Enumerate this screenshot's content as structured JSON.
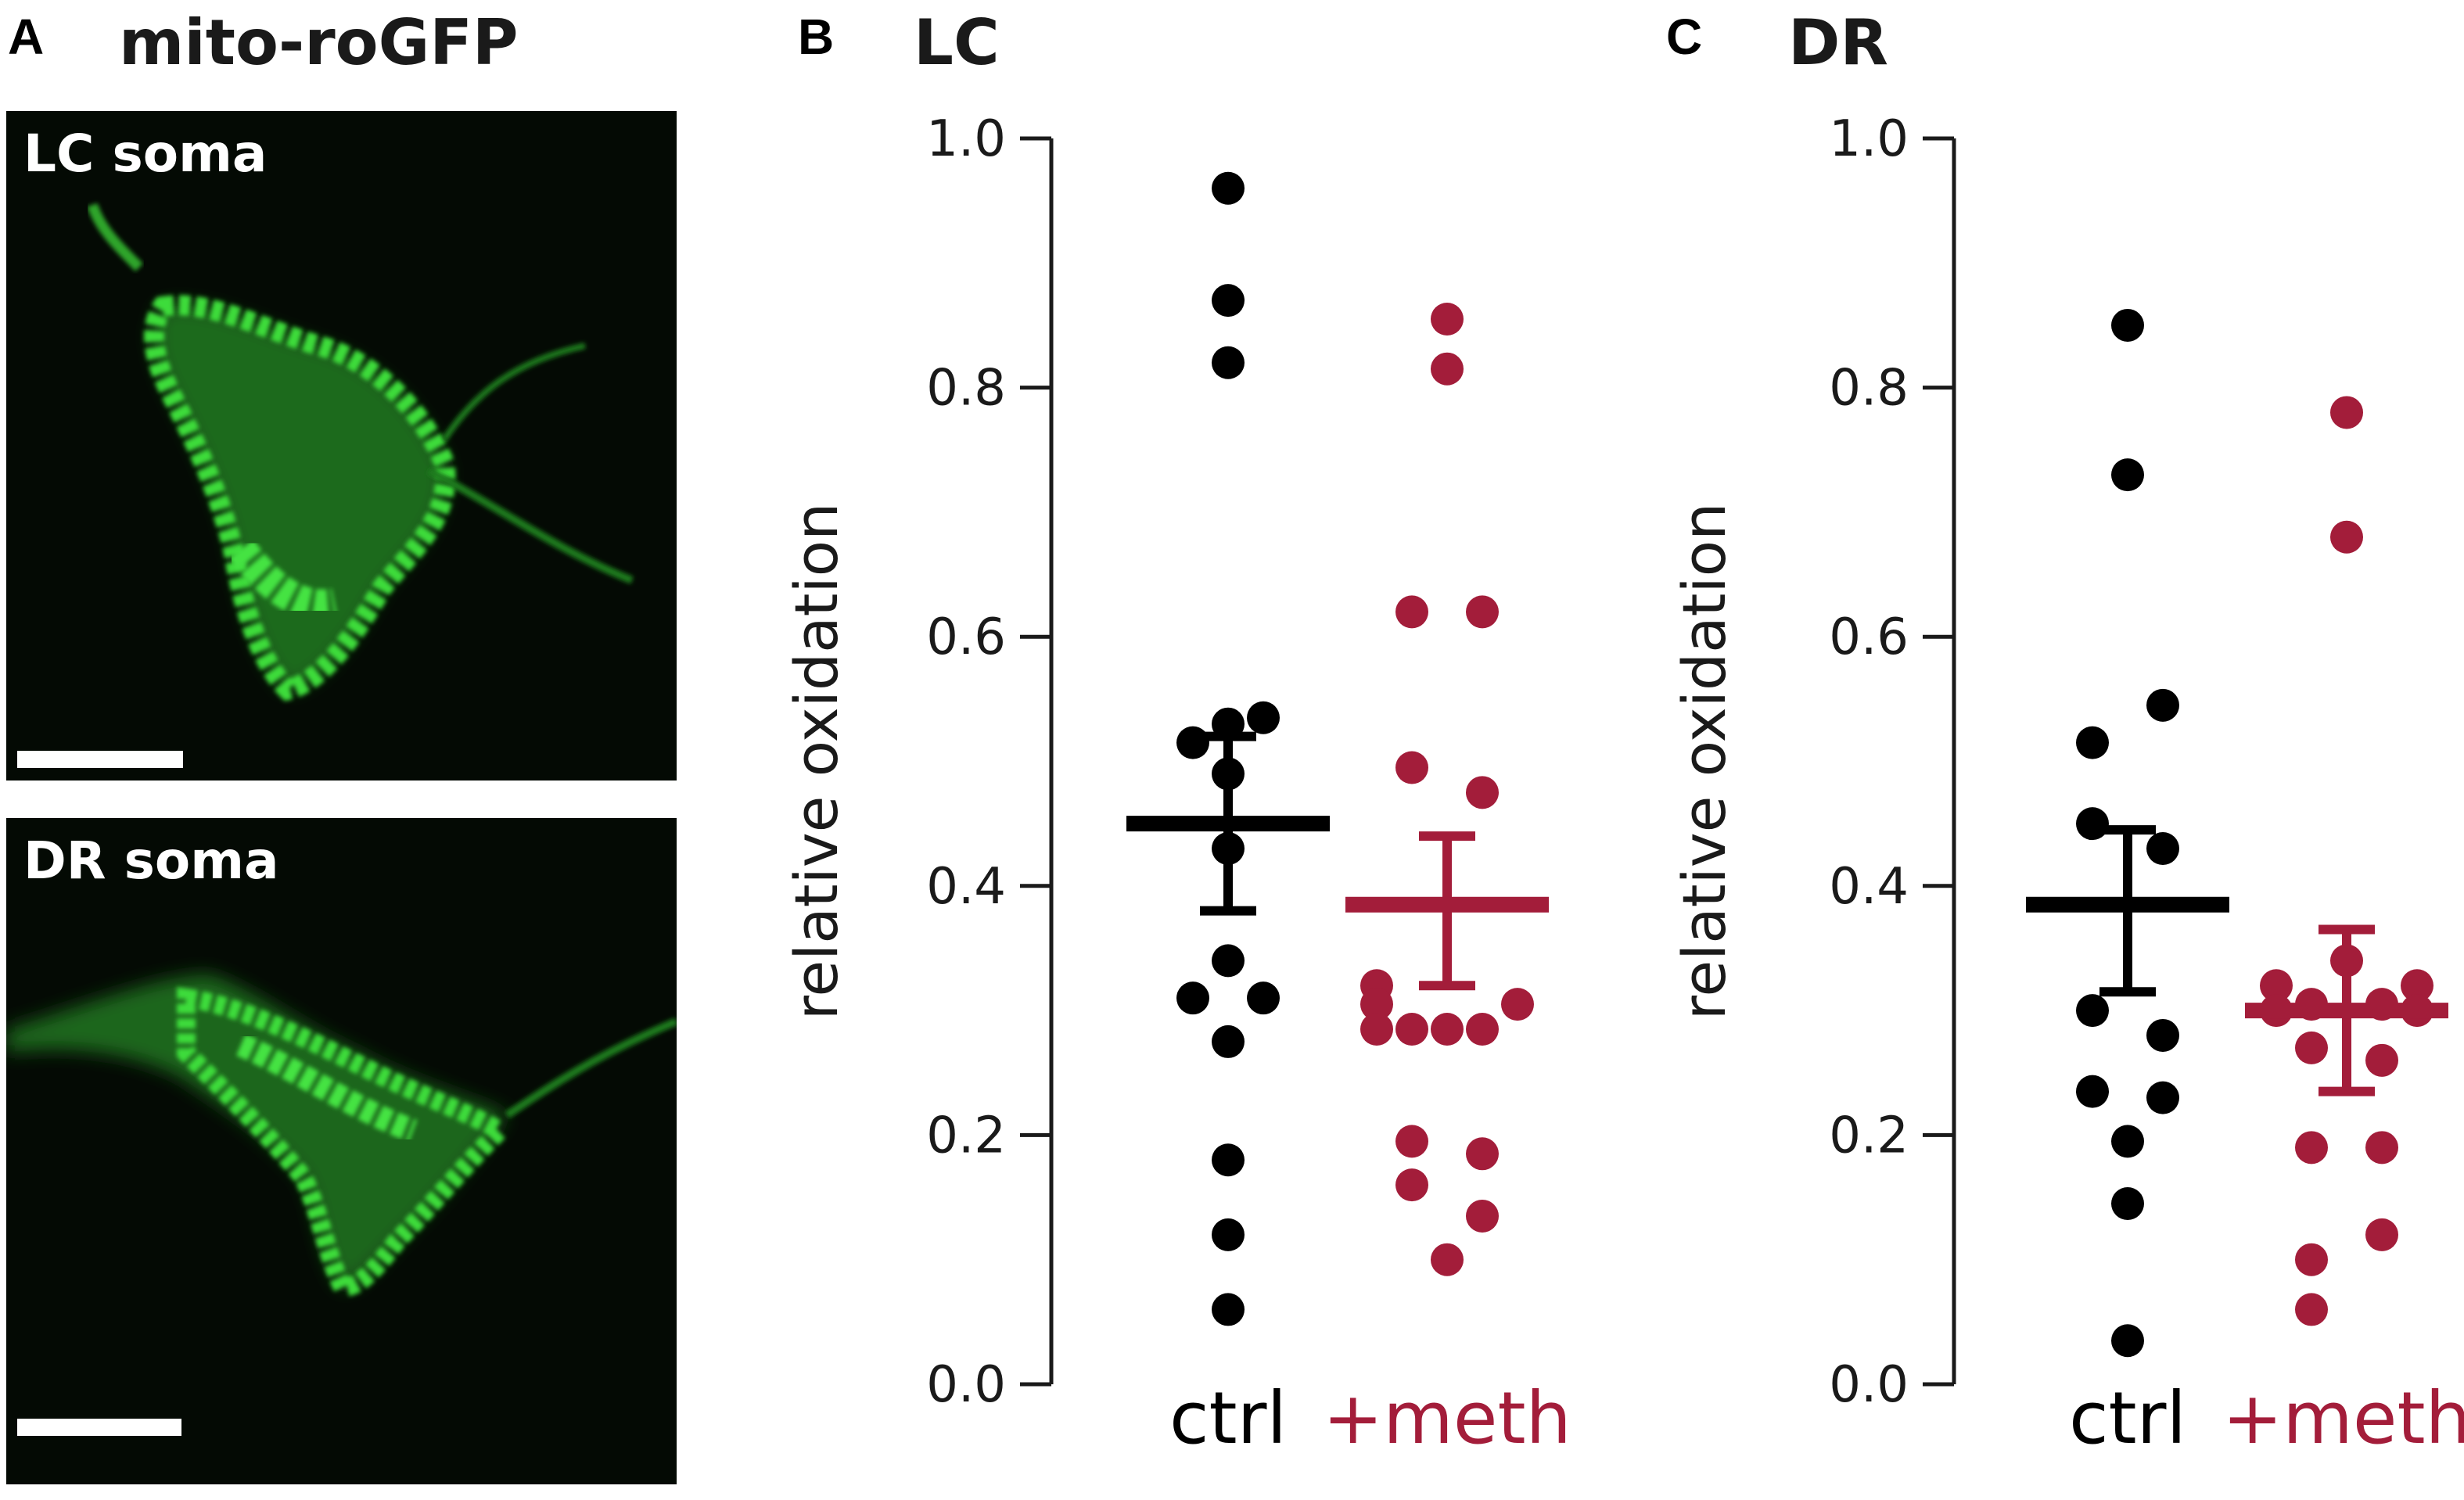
{
  "panels": {
    "a": {
      "letter": "A",
      "title": "mito-roGFP",
      "images": [
        {
          "label": "LC soma"
        },
        {
          "label": "DR soma"
        }
      ]
    },
    "b": {
      "letter": "B",
      "title": "LC"
    },
    "c": {
      "letter": "C",
      "title": "DR"
    }
  },
  "colors": {
    "ctrl": "#000000",
    "meth": "#a31d3a",
    "fluorescence": "#3ddc3a",
    "background": "#040a04"
  },
  "chart_data": [
    {
      "type": "scatter",
      "title": "LC",
      "ylabel": "relative oxidation",
      "ylim": [
        0.0,
        1.0
      ],
      "yticks": [
        "0.0",
        "0.2",
        "0.4",
        "0.6",
        "0.8",
        "1.0"
      ],
      "categories": [
        "ctrl",
        "+meth"
      ],
      "grid": false,
      "series": [
        {
          "name": "ctrl",
          "points": [
            {
              "x": 0,
              "y": 0.96
            },
            {
              "x": 0,
              "y": 0.87
            },
            {
              "x": 0,
              "y": 0.82
            },
            {
              "x": -0.5,
              "y": 0.515
            },
            {
              "x": 0,
              "y": 0.53
            },
            {
              "x": 0.5,
              "y": 0.535
            },
            {
              "x": 0,
              "y": 0.49
            },
            {
              "x": 0,
              "y": 0.43
            },
            {
              "x": 0,
              "y": 0.34
            },
            {
              "x": -0.5,
              "y": 0.31
            },
            {
              "x": 0.5,
              "y": 0.31
            },
            {
              "x": 0,
              "y": 0.275
            },
            {
              "x": 0,
              "y": 0.18
            },
            {
              "x": 0,
              "y": 0.12
            },
            {
              "x": 0,
              "y": 0.06
            }
          ],
          "mean": 0.45,
          "err_low": 0.38,
          "err_high": 0.52
        },
        {
          "name": "+meth",
          "points": [
            {
              "x": 0,
              "y": 0.855
            },
            {
              "x": 0,
              "y": 0.815
            },
            {
              "x": -0.5,
              "y": 0.62
            },
            {
              "x": 0.5,
              "y": 0.62
            },
            {
              "x": -0.5,
              "y": 0.495
            },
            {
              "x": 0.5,
              "y": 0.475
            },
            {
              "x": -1,
              "y": 0.32
            },
            {
              "x": -1,
              "y": 0.305
            },
            {
              "x": 1,
              "y": 0.305
            },
            {
              "x": -1,
              "y": 0.285
            },
            {
              "x": -0.5,
              "y": 0.285
            },
            {
              "x": 0,
              "y": 0.285
            },
            {
              "x": 0.5,
              "y": 0.285
            },
            {
              "x": -0.5,
              "y": 0.195
            },
            {
              "x": 0.5,
              "y": 0.185
            },
            {
              "x": -0.5,
              "y": 0.16
            },
            {
              "x": 0.5,
              "y": 0.135
            },
            {
              "x": 0,
              "y": 0.1
            }
          ],
          "mean": 0.385,
          "err_low": 0.32,
          "err_high": 0.44
        }
      ]
    },
    {
      "type": "scatter",
      "title": "DR",
      "ylabel": "relative oxidation",
      "ylim": [
        0.0,
        1.0
      ],
      "yticks": [
        "0.0",
        "0.2",
        "0.4",
        "0.6",
        "0.8",
        "1.0"
      ],
      "categories": [
        "ctrl",
        "+meth"
      ],
      "grid": false,
      "series": [
        {
          "name": "ctrl",
          "points": [
            {
              "x": 0,
              "y": 0.85
            },
            {
              "x": 0,
              "y": 0.73
            },
            {
              "x": 0.5,
              "y": 0.545
            },
            {
              "x": -0.5,
              "y": 0.515
            },
            {
              "x": -0.5,
              "y": 0.45
            },
            {
              "x": 0.5,
              "y": 0.43
            },
            {
              "x": -0.5,
              "y": 0.3
            },
            {
              "x": 0.5,
              "y": 0.28
            },
            {
              "x": -0.5,
              "y": 0.235
            },
            {
              "x": 0.5,
              "y": 0.23
            },
            {
              "x": 0,
              "y": 0.195
            },
            {
              "x": 0,
              "y": 0.145
            },
            {
              "x": 0,
              "y": 0.035
            }
          ],
          "mean": 0.385,
          "err_low": 0.315,
          "err_high": 0.445
        },
        {
          "name": "+meth",
          "points": [
            {
              "x": 0,
              "y": 0.78
            },
            {
              "x": 0,
              "y": 0.68
            },
            {
              "x": 0,
              "y": 0.34
            },
            {
              "x": -1,
              "y": 0.32
            },
            {
              "x": 1,
              "y": 0.32
            },
            {
              "x": -0.5,
              "y": 0.305
            },
            {
              "x": 0.5,
              "y": 0.305
            },
            {
              "x": -1,
              "y": 0.3
            },
            {
              "x": 1,
              "y": 0.3
            },
            {
              "x": -0.5,
              "y": 0.27
            },
            {
              "x": 0.5,
              "y": 0.26
            },
            {
              "x": -0.5,
              "y": 0.19
            },
            {
              "x": 0.5,
              "y": 0.19
            },
            {
              "x": 0.5,
              "y": 0.12
            },
            {
              "x": -0.5,
              "y": 0.1
            },
            {
              "x": -0.5,
              "y": 0.06
            }
          ],
          "mean": 0.3,
          "err_low": 0.235,
          "err_high": 0.365
        }
      ]
    }
  ]
}
